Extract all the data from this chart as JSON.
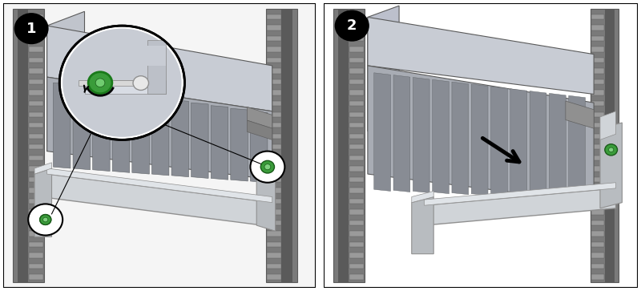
{
  "fig_width": 8.0,
  "fig_height": 3.63,
  "dpi": 100,
  "background": "#ffffff",
  "border_color": "#000000",
  "panel1_bg": "#f5f5f5",
  "panel2_bg": "#ffffff",
  "rack_dark": "#5a5a5a",
  "rack_mid": "#7a7a7a",
  "rack_light": "#c8c8c8",
  "rack_tooth": "#9a9a9a",
  "server_top": "#c8ccd4",
  "server_face": "#a0a4ac",
  "server_slot": "#888c94",
  "bracket_main": "#d0d4d8",
  "bracket_edge": "#909090",
  "bracket_end": "#b8bcC0",
  "screw_green": "#3a9c3a",
  "screw_gray": "#c0c0c0",
  "black": "#000000",
  "white": "#ffffff",
  "callout_bg": "#d4d8e0",
  "step_badge_bg": "#000000",
  "step_badge_fg": "#ffffff",
  "step_fontsize": 13,
  "panel_sep": "#cccccc"
}
